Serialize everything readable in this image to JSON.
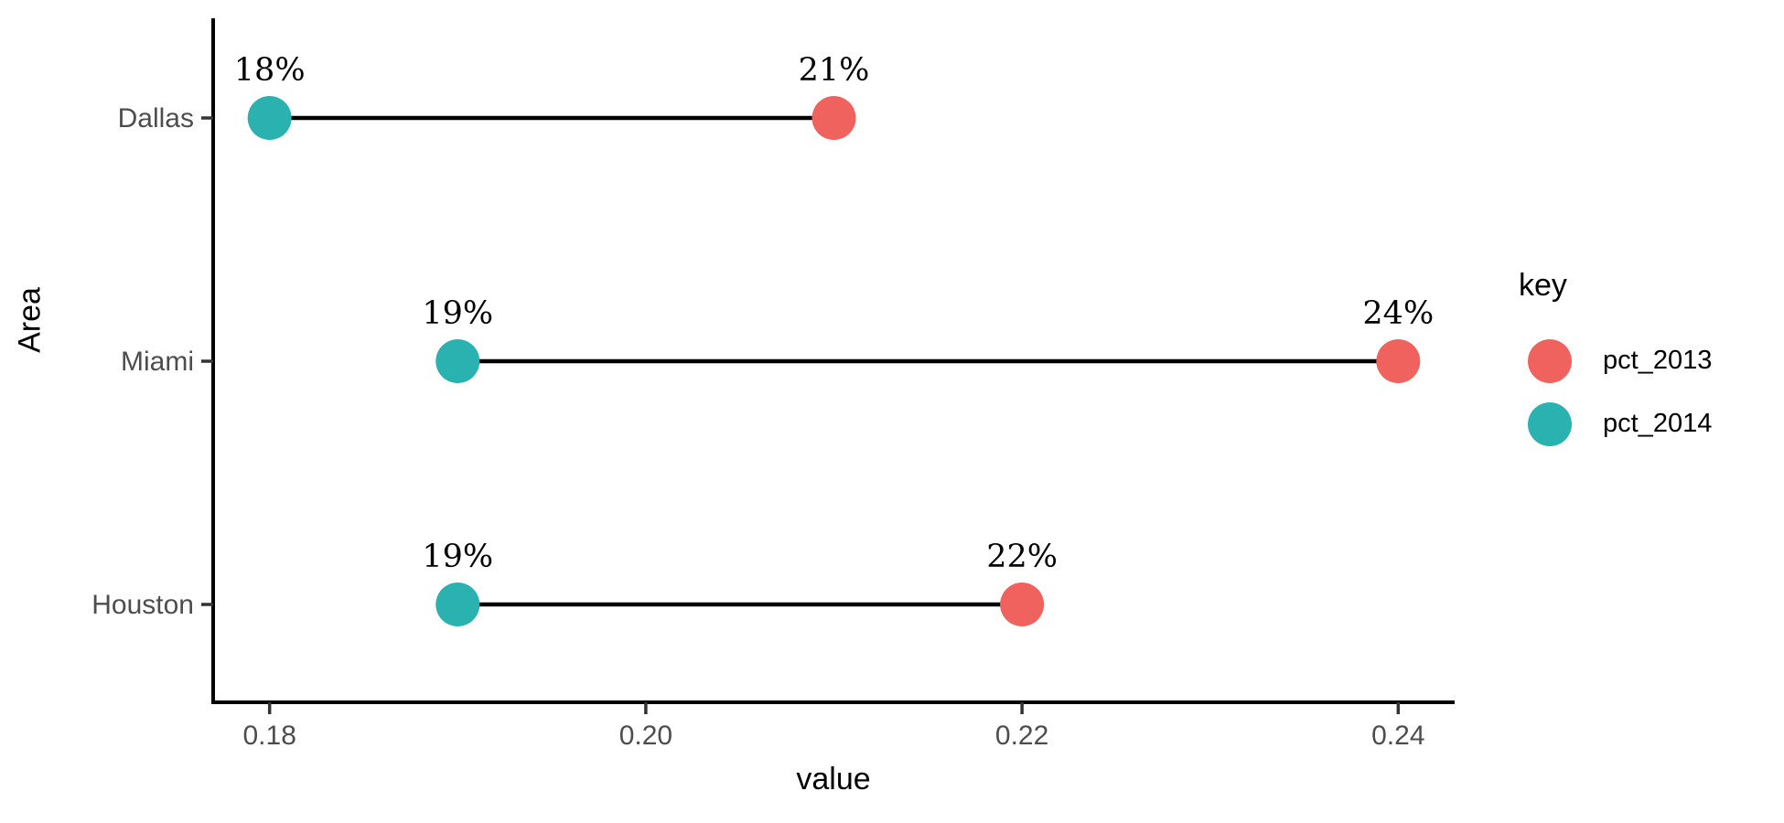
{
  "chart_data": {
    "type": "dumbbell",
    "title": "",
    "xlabel": "value",
    "ylabel": "Area",
    "categories": [
      "Dallas",
      "Miami",
      "Houston"
    ],
    "series": [
      {
        "name": "pct_2013",
        "color": "#F0625D",
        "values": [
          0.21,
          0.24,
          0.22
        ],
        "point_labels": [
          "21%",
          "24%",
          "22%"
        ]
      },
      {
        "name": "pct_2014",
        "color": "#29B2AF",
        "values": [
          0.18,
          0.19,
          0.19
        ],
        "point_labels": [
          "18%",
          "19%",
          "19%"
        ]
      }
    ],
    "x_ticks": {
      "values": [
        0.18,
        0.2,
        0.22,
        0.24
      ],
      "labels": [
        "0.18",
        "0.20",
        "0.22",
        "0.24"
      ]
    },
    "xlim": [
      0.177,
      0.243
    ],
    "grid": "off",
    "legend": {
      "title": "key",
      "position": "right",
      "entries": [
        {
          "label": "pct_2013",
          "color": "#F0625D"
        },
        {
          "label": "pct_2014",
          "color": "#29B2AF"
        }
      ]
    },
    "style": {
      "background": "#FFFFFF",
      "axis_line_color": "#000000",
      "tick_color": "#333333",
      "axis_text_color": "#4D4D4D",
      "connector_color": "#000000",
      "point_label_color": "#000000"
    }
  }
}
